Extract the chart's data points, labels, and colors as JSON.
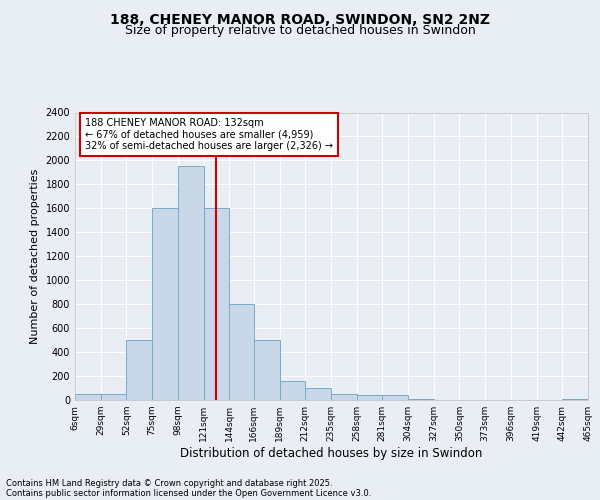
{
  "title_line1": "188, CHENEY MANOR ROAD, SWINDON, SN2 2NZ",
  "title_line2": "Size of property relative to detached houses in Swindon",
  "xlabel": "Distribution of detached houses by size in Swindon",
  "ylabel": "Number of detached properties",
  "footer_line1": "Contains HM Land Registry data © Crown copyright and database right 2025.",
  "footer_line2": "Contains public sector information licensed under the Open Government Licence v3.0.",
  "annotation_line1": "188 CHENEY MANOR ROAD: 132sqm",
  "annotation_line2": "← 67% of detached houses are smaller (4,959)",
  "annotation_line3": "32% of semi-detached houses are larger (2,326) →",
  "property_size": 132,
  "bar_edges": [
    6,
    29,
    52,
    75,
    98,
    121,
    144,
    166,
    189,
    212,
    235,
    258,
    281,
    304,
    327,
    350,
    373,
    396,
    419,
    442,
    465
  ],
  "bar_heights": [
    50,
    50,
    500,
    1600,
    1950,
    1600,
    800,
    500,
    160,
    100,
    50,
    40,
    40,
    5,
    0,
    0,
    0,
    0,
    0,
    5
  ],
  "bar_color": "#c8d8e8",
  "bar_edge_color": "#7aaac8",
  "vline_color": "#cc0000",
  "vline_x": 132,
  "ylim": [
    0,
    2400
  ],
  "yticks": [
    0,
    200,
    400,
    600,
    800,
    1000,
    1200,
    1400,
    1600,
    1800,
    2000,
    2200,
    2400
  ],
  "bg_color": "#e8eef4",
  "grid_color": "#ffffff",
  "annotation_box_color": "#ffffff",
  "annotation_box_edge_color": "#cc0000"
}
